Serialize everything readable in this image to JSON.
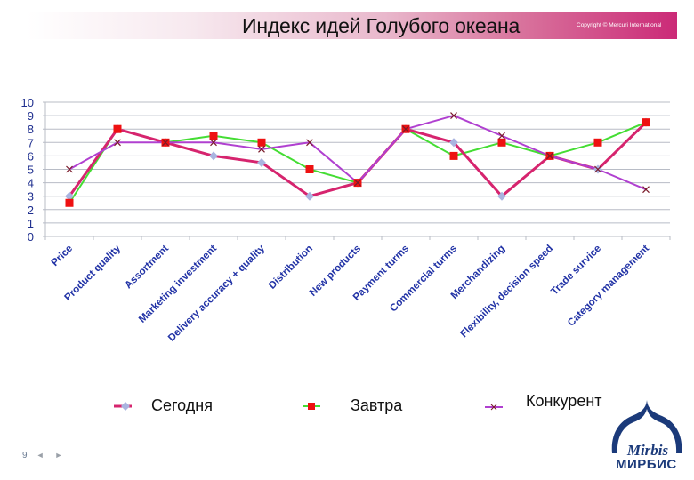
{
  "header": {
    "title": "Индекс идей Голубого океана",
    "copyright": "Copyright © Mercuri International"
  },
  "colors": {
    "today_line": "#d6246e",
    "today_marker": "#aab4e0",
    "tomorrow_line": "#44dd33",
    "tomorrow_marker": "#ee1111",
    "competitor_line": "#b040d0",
    "competitor_marker": "#7a1a2a",
    "axis_text": "#1f2f8f",
    "gridline": "#b8bcc6"
  },
  "chart_data": {
    "type": "line",
    "title": "Индекс идей Голубого океана",
    "xlabel": "",
    "ylabel": "",
    "ylim": [
      0,
      10
    ],
    "yticks": [
      0,
      1,
      2,
      3,
      4,
      5,
      6,
      7,
      8,
      9,
      10
    ],
    "grid": true,
    "legend_position": "bottom",
    "categories": [
      "Price",
      "Product quality",
      "Assortment",
      "Marketing investment",
      "Delivery accuracy + quality",
      "Distribution",
      "New products",
      "Payment turms",
      "Commercial turms",
      "Merchandizing",
      "Flexibility, decision speed",
      "Trade survice",
      "Category management"
    ],
    "series": [
      {
        "name": "Сегодня",
        "values": [
          3,
          8,
          7,
          6,
          5.5,
          3,
          4,
          8,
          7,
          3,
          6,
          5,
          8.5
        ]
      },
      {
        "name": "Завтра",
        "values": [
          2.5,
          8,
          7,
          7.5,
          7,
          5,
          4,
          8,
          6,
          7,
          6,
          7,
          8.5
        ]
      },
      {
        "name": "Конкурент",
        "values": [
          5,
          7,
          7,
          7,
          6.5,
          7,
          4,
          8,
          9,
          7.5,
          6,
          5,
          3.5
        ]
      }
    ]
  },
  "legend": {
    "items": [
      {
        "label": "Сегодня",
        "icon": "pink-line-diamond-marker"
      },
      {
        "label": "Завтра",
        "icon": "green-line-square-marker"
      },
      {
        "label": "Конкурент",
        "icon": "purple-line-x-marker"
      }
    ]
  },
  "footer": {
    "page_number": "9",
    "prev_label": "◄",
    "next_label": "►",
    "logo_script": "Mirbis",
    "logo_text": "МИРБИС"
  }
}
